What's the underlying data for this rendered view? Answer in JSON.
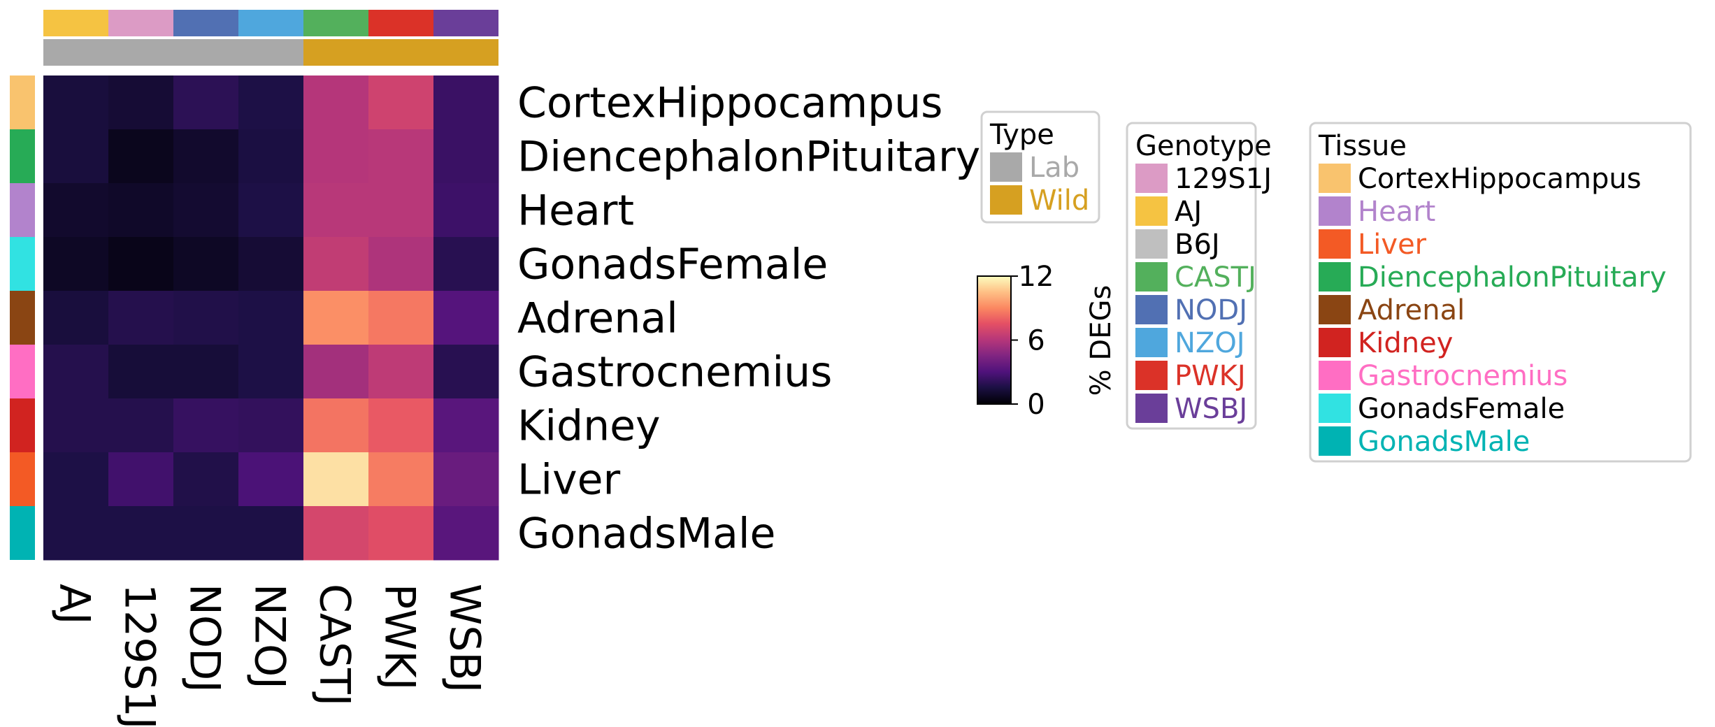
{
  "chart_data": {
    "type": "heatmap",
    "rows": [
      "CortexHippocampus",
      "DiencephalonPituitary",
      "Heart",
      "GonadsFemale",
      "Adrenal",
      "Gastrocnemius",
      "Kidney",
      "Liver",
      "GonadsMale"
    ],
    "columns": [
      "AJ",
      "129S1J",
      "NODJ",
      "NZOJ",
      "CASTJ",
      "PWKJ",
      "WSBJ"
    ],
    "values": [
      [
        1.4,
        1.2,
        2.0,
        1.6,
        6.0,
        6.8,
        2.4
      ],
      [
        1.4,
        0.6,
        1.0,
        1.5,
        6.0,
        6.1,
        2.4
      ],
      [
        1.0,
        0.9,
        1.1,
        1.6,
        6.1,
        6.1,
        2.5
      ],
      [
        0.8,
        0.5,
        0.8,
        1.2,
        6.4,
        5.8,
        1.9
      ],
      [
        1.4,
        1.8,
        1.7,
        1.6,
        9.2,
        8.6,
        3.2
      ],
      [
        1.8,
        1.3,
        1.3,
        1.6,
        5.5,
        6.3,
        1.9
      ],
      [
        1.8,
        1.8,
        2.3,
        2.2,
        8.5,
        7.8,
        3.3
      ],
      [
        1.6,
        2.6,
        1.7,
        2.9,
        11.3,
        8.7,
        3.8
      ],
      [
        1.6,
        1.6,
        1.6,
        1.6,
        7.0,
        7.4,
        3.3
      ]
    ],
    "column_colors": [
      "#f5c342",
      "#dc9bc5",
      "#5170b3",
      "#4fa7dd",
      "#53b05c",
      "#db3228",
      "#6a3e99"
    ],
    "column_types": [
      "Lab",
      "Lab",
      "Lab",
      "Lab",
      "Wild",
      "Wild",
      "Wild"
    ],
    "row_colors": [
      "#f9c36e",
      "#27ab56",
      "#b283cc",
      "#31e2e2",
      "#8a4513",
      "#ff6ec3",
      "#d12320",
      "#f35a25",
      "#00b3b3"
    ],
    "colormap": "magma",
    "vmin": 0,
    "vmax": 12,
    "colorbar_ticks": [
      "0",
      "6",
      "12"
    ],
    "colorbar_label": "% DEGs",
    "legends": [
      {
        "title": "Type",
        "items": [
          {
            "label": "Lab",
            "color": "#a9a9a9",
            "text_color": "#a9a9a9"
          },
          {
            "label": "Wild",
            "color": "#d6a021",
            "text_color": "#d6a021"
          }
        ]
      },
      {
        "title": "Genotype",
        "items": [
          {
            "label": "129S1J",
            "color": "#dc9bc5",
            "text_color": "#000000"
          },
          {
            "label": "AJ",
            "color": "#f5c342",
            "text_color": "#000000"
          },
          {
            "label": "B6J",
            "color": "#bfbfbf",
            "text_color": "#000000"
          },
          {
            "label": "CASTJ",
            "color": "#53b05c",
            "text_color": "#53b05c"
          },
          {
            "label": "NODJ",
            "color": "#5170b3",
            "text_color": "#5170b3"
          },
          {
            "label": "NZOJ",
            "color": "#4fa7dd",
            "text_color": "#4fa7dd"
          },
          {
            "label": "PWKJ",
            "color": "#db3228",
            "text_color": "#db3228"
          },
          {
            "label": "WSBJ",
            "color": "#6a3e99",
            "text_color": "#6a3e99"
          }
        ]
      },
      {
        "title": "Tissue",
        "items": [
          {
            "label": "CortexHippocampus",
            "color": "#f9c36e",
            "text_color": "#000000"
          },
          {
            "label": "Heart",
            "color": "#b283cc",
            "text_color": "#b283cc"
          },
          {
            "label": "Liver",
            "color": "#f35a25",
            "text_color": "#f35a25"
          },
          {
            "label": "DiencephalonPituitary",
            "color": "#27ab56",
            "text_color": "#27ab56"
          },
          {
            "label": "Adrenal",
            "color": "#8a4513",
            "text_color": "#8a4513"
          },
          {
            "label": "Kidney",
            "color": "#d12320",
            "text_color": "#d12320"
          },
          {
            "label": "Gastrocnemius",
            "color": "#ff6ec3",
            "text_color": "#ff6ec3"
          },
          {
            "label": "GonadsFemale",
            "color": "#31e2e2",
            "text_color": "#000000"
          },
          {
            "label": "GonadsMale",
            "color": "#00b3b3",
            "text_color": "#00b3b3"
          }
        ]
      }
    ]
  }
}
